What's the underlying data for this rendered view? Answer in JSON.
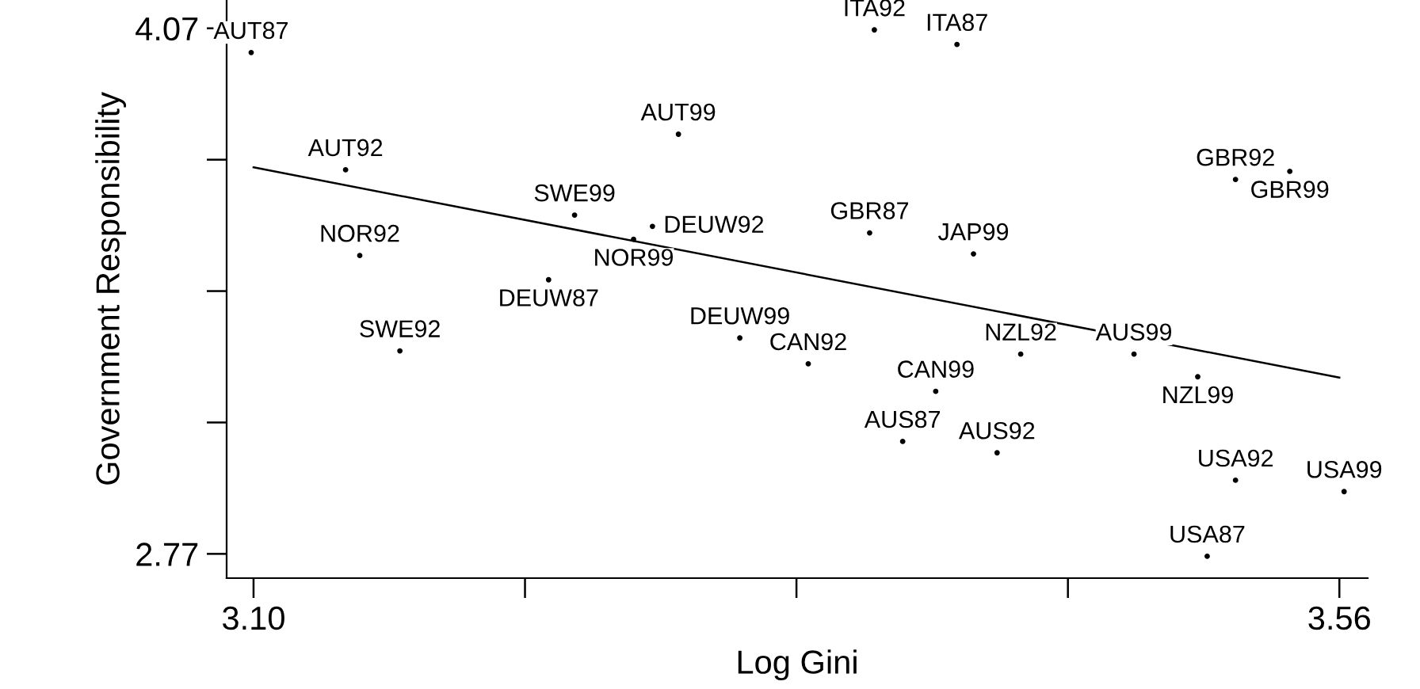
{
  "chart_data": {
    "type": "scatter",
    "xlabel": "Log Gini",
    "ylabel": "Government Responsibility",
    "xlim": [
      3.0886,
      3.572
    ],
    "ylim": [
      2.71,
      4.14
    ],
    "xticks": [
      {
        "value": 3.1,
        "label": "3.10"
      },
      {
        "value": 3.215,
        "label": null
      },
      {
        "value": 3.33,
        "label": null
      },
      {
        "value": 3.445,
        "label": null
      },
      3.56
    ],
    "yticks": [
      2.77,
      {
        "value": 3.095,
        "label": null
      },
      {
        "value": 3.42,
        "label": null
      },
      {
        "value": 3.745,
        "label": null
      },
      4.07
    ],
    "grid": false,
    "legend": false,
    "marker": "circle",
    "series": [
      {
        "color": "#000000",
        "x": [
          3.099,
          3.363,
          3.398,
          3.28,
          3.139,
          3.516,
          3.539,
          3.236,
          3.269,
          3.261,
          3.361,
          3.405,
          3.145,
          3.225,
          3.162,
          3.306,
          3.335,
          3.425,
          3.473,
          3.5,
          3.389,
          3.375,
          3.415,
          3.516,
          3.562,
          3.504
        ],
        "values": [
          4.01,
          4.066,
          4.03,
          3.808,
          3.72,
          3.696,
          3.716,
          3.608,
          3.58,
          3.548,
          3.564,
          3.512,
          3.508,
          3.448,
          3.272,
          3.304,
          3.24,
          3.264,
          3.264,
          3.208,
          3.172,
          3.048,
          3.02,
          2.952,
          2.924,
          2.764
        ],
        "value_labels": [
          "AUT87",
          "ITA92",
          "ITA87",
          "AUT99",
          "AUT92",
          "GBR92",
          "GBR99",
          "SWE99",
          "DEUW92",
          "NOR99",
          "GBR87",
          "JAP99",
          "NOR92",
          "DEUW87",
          "SWE92",
          "DEUW99",
          "CAN92",
          "NZL92",
          "AUS99",
          "NZL99",
          "CAN99",
          "AUS87",
          "AUS92",
          "USA92",
          "USA99",
          "USA87"
        ]
      },
      {
        "type": "line",
        "marker": "none",
        "color": "#000000",
        "x": [
          3.1,
          3.56
        ],
        "values": [
          3.726,
          3.206
        ]
      }
    ]
  }
}
